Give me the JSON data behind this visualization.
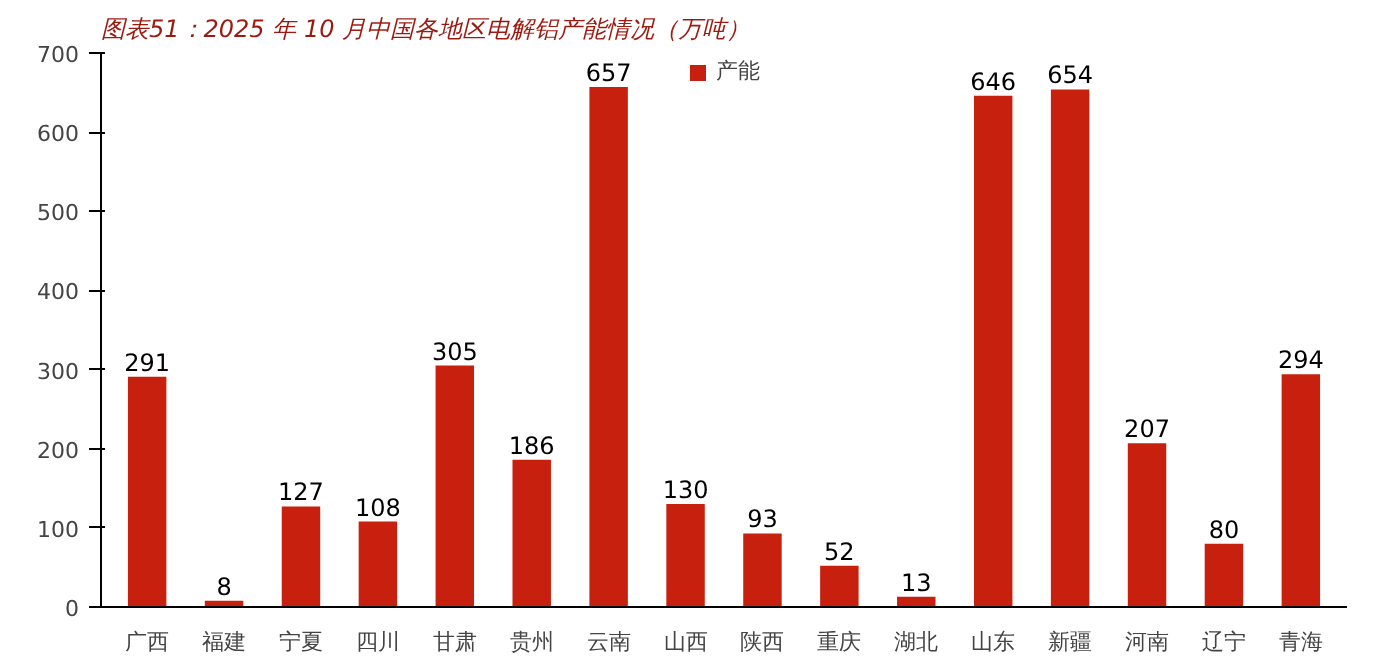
{
  "chart_data": {
    "type": "bar",
    "title": "图表51：2025 年 10 月中国各地区电解铝产能情况（万吨）",
    "categories": [
      "广西",
      "福建",
      "宁夏",
      "四川",
      "甘肃",
      "贵州",
      "云南",
      "山西",
      "陕西",
      "重庆",
      "湖北",
      "山东",
      "新疆",
      "河南",
      "辽宁",
      "青海"
    ],
    "series": [
      {
        "name": "产能",
        "color": "#c8200e",
        "values": [
          291,
          8,
          127,
          108,
          305,
          186,
          657,
          130,
          93,
          52,
          13,
          646,
          654,
          207,
          80,
          294
        ]
      }
    ],
    "ylim": [
      0,
      700
    ],
    "yticks": [
      0,
      100,
      200,
      300,
      400,
      500,
      600,
      700
    ],
    "grid": false,
    "legend": "top",
    "data_labels": true
  }
}
